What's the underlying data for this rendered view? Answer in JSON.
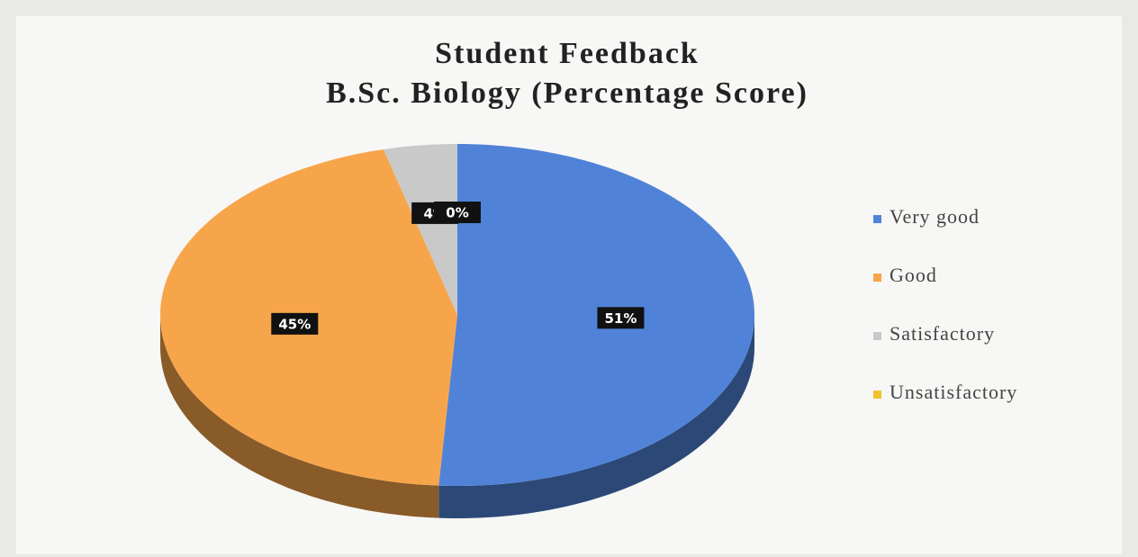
{
  "chart_data": {
    "type": "pie",
    "title": "Student Feedback",
    "subtitle": "B.Sc. Biology (Percentage Score)",
    "categories": [
      "Very good",
      "Good",
      "Satisfactory",
      "Unsatisfactory"
    ],
    "values": [
      51,
      45,
      4,
      0
    ],
    "value_labels": [
      "51%",
      "45%",
      "4%",
      "0%"
    ],
    "colors": [
      "#5083d8",
      "#f7a54b",
      "#c9c9c9",
      "#f2c12e"
    ],
    "legend": "right"
  }
}
